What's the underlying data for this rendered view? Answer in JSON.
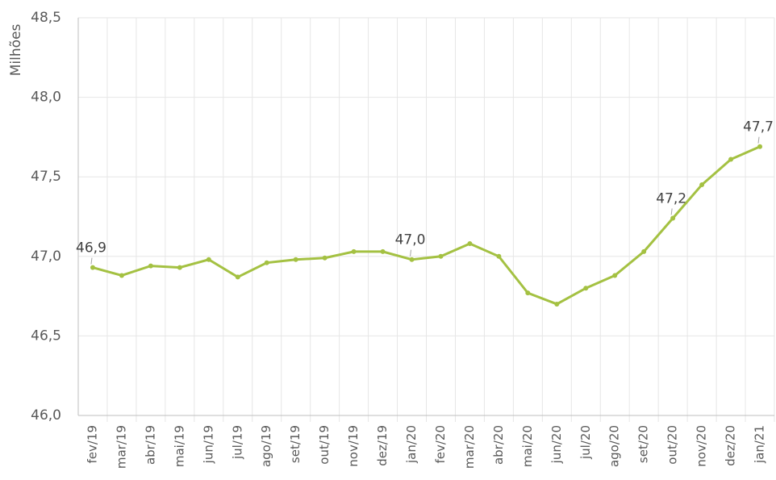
{
  "chart_data": {
    "type": "line",
    "y_label": "Milhões",
    "categories": [
      "fev/19",
      "mar/19",
      "abr/19",
      "mai/19",
      "jun/19",
      "jul/19",
      "ago/19",
      "set/19",
      "out/19",
      "nov/19",
      "dez/19",
      "jan/20",
      "fev/20",
      "mar/20",
      "abr/20",
      "mai/20",
      "jun/20",
      "jul/20",
      "ago/20",
      "set/20",
      "out/20",
      "nov/20",
      "dez/20",
      "jan/21"
    ],
    "series": [
      {
        "color": "#a4c142",
        "values": [
          46.93,
          46.88,
          46.94,
          46.93,
          46.98,
          46.87,
          46.96,
          46.98,
          46.99,
          47.03,
          47.03,
          46.98,
          47.0,
          47.08,
          47.0,
          46.77,
          46.7,
          46.8,
          46.88,
          47.03,
          47.24,
          47.45,
          47.61,
          47.69
        ],
        "value_labels": [
          "46,9",
          null,
          null,
          null,
          null,
          null,
          null,
          null,
          null,
          null,
          null,
          "47,0",
          null,
          null,
          null,
          null,
          null,
          null,
          null,
          null,
          "47,2",
          null,
          null,
          "47,7"
        ]
      }
    ],
    "ylim": [
      46,
      48.5
    ],
    "yticks": [
      {
        "value": 46,
        "label": "46,0"
      },
      {
        "value": 46.5,
        "label": "46,5"
      },
      {
        "value": 47,
        "label": "47,0"
      },
      {
        "value": 47.5,
        "label": "47,5"
      },
      {
        "value": 48,
        "label": "48,0"
      },
      {
        "value": 48.5,
        "label": "48,5"
      }
    ],
    "grid": true
  }
}
